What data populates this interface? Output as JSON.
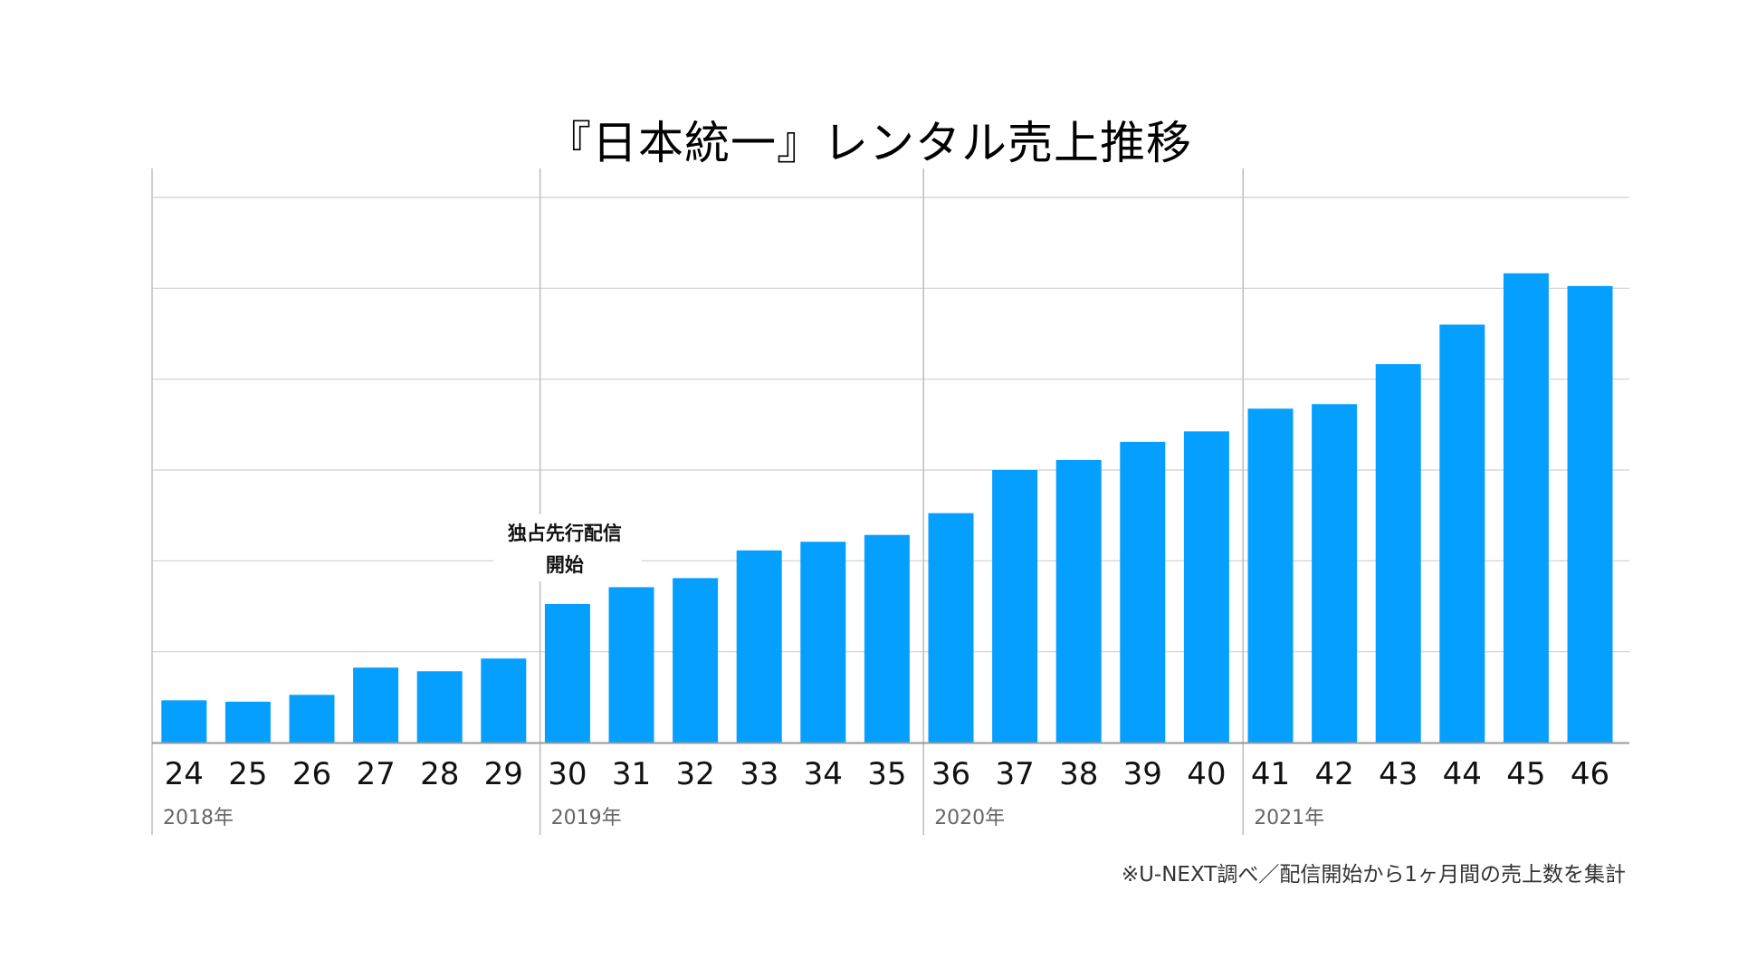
{
  "chart_data": {
    "type": "bar",
    "title": "『日本統一』レンタル売上推移",
    "categories": [
      "24",
      "25",
      "26",
      "27",
      "28",
      "29",
      "30",
      "31",
      "32",
      "33",
      "34",
      "35",
      "36",
      "37",
      "38",
      "39",
      "40",
      "41",
      "42",
      "43",
      "44",
      "45",
      "46"
    ],
    "values": [
      0.93,
      0.9,
      1.05,
      1.65,
      1.57,
      1.85,
      3.05,
      3.42,
      3.62,
      4.23,
      4.42,
      4.57,
      5.05,
      6.0,
      6.22,
      6.62,
      6.85,
      7.35,
      7.45,
      8.33,
      9.2,
      10.33,
      10.05
    ],
    "ylim": [
      0,
      12
    ],
    "grid": true,
    "year_groups": [
      {
        "label": "2018年",
        "start": 0,
        "end": 5
      },
      {
        "label": "2019年",
        "start": 6,
        "end": 11
      },
      {
        "label": "2020年",
        "start": 12,
        "end": 16
      },
      {
        "label": "2021年",
        "start": 17,
        "end": 22
      }
    ],
    "annotation": {
      "lines": [
        "独占先行配信",
        "開始"
      ],
      "category": "30"
    },
    "footnote": "※U-NEXT調べ／配信開始から1ヶ月間の売上数を集計",
    "colors": {
      "bar": "#05A0FF",
      "grid": "#CFCFCF",
      "separator": "#BDBDBD",
      "axis": "#999999",
      "tick_text": "#111111",
      "year_text": "#666666"
    }
  }
}
